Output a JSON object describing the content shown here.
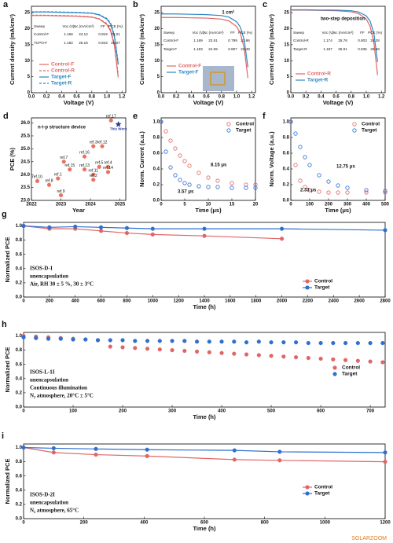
{
  "watermark": "SOLARZOOM",
  "chart_data": [
    {
      "type": "line",
      "label": "a",
      "xlabel": "Voltage (V)",
      "ylabel": "Current density (mA/cm²)",
      "xlim": [
        0,
        1.25
      ],
      "xticks": [
        {
          "value": 0,
          "label": "0.0"
        },
        0.2,
        0.4,
        0.6,
        0.8,
        {
          "value": 1,
          "label": "1.0"
        },
        1.2
      ],
      "ylim": [
        0,
        27
      ],
      "yticks": [
        0,
        5,
        10,
        15,
        20,
        25
      ],
      "x": [
        0,
        0.2,
        0.4,
        0.6,
        0.8,
        0.9,
        1.0,
        1.05,
        1.1,
        1.15
      ],
      "series": [
        {
          "name": "Control-F",
          "color": "#e06666",
          "style": "solid",
          "marker": "none",
          "values": [
            24.1,
            24.1,
            24.0,
            23.9,
            23.6,
            23.0,
            21.3,
            19.2,
            14.6,
            4.8
          ]
        },
        {
          "name": "Control-R",
          "color": "#e06666",
          "style": "dashed",
          "marker": "none",
          "values": [
            24.2,
            24.2,
            24.1,
            24.0,
            23.7,
            23.1,
            21.6,
            19.6,
            15.2,
            5.6
          ]
        },
        {
          "name": "Target-F",
          "color": "#2e86c1",
          "style": "solid",
          "marker": "none",
          "values": [
            25.2,
            25.2,
            25.1,
            25.0,
            24.8,
            24.3,
            23.0,
            21.4,
            17.5,
            8.8
          ]
        },
        {
          "name": "Target-R",
          "color": "#2e86c1",
          "style": "dashed",
          "marker": "none",
          "values": [
            25.3,
            25.3,
            25.2,
            25.1,
            24.9,
            24.4,
            23.2,
            21.7,
            17.9,
            9.4
          ]
        }
      ],
      "table": {
        "header": [
          "Sweep",
          "Voc (V)",
          "Jsc (mA/cm²)",
          "FF",
          "PCE (%)"
        ],
        "rows": [
          [
            "Control-F",
            1.166,
            24.12,
            0.819,
            23.01
          ],
          [
            "TCPO-F",
            1.182,
            25.16,
            0.843,
            25.07
          ]
        ]
      },
      "annotations": []
    },
    {
      "type": "line",
      "label": "b",
      "xlabel": "Voltage (V)",
      "ylabel": "Current density (mA/cm²)",
      "xlim": [
        0,
        1.25
      ],
      "xticks": [
        {
          "value": 0,
          "label": "0.0"
        },
        0.2,
        0.4,
        0.6,
        0.8,
        {
          "value": 1,
          "label": "1.0"
        },
        1.2
      ],
      "ylim": [
        0,
        27
      ],
      "yticks": [
        0,
        5,
        10,
        15,
        20,
        25
      ],
      "x": [
        0,
        0.2,
        0.4,
        0.6,
        0.8,
        0.9,
        1.0,
        1.05,
        1.1,
        1.15
      ],
      "series": [
        {
          "name": "Control-F",
          "color": "#e06666",
          "style": "solid",
          "marker": "none",
          "values": [
            23.5,
            23.5,
            23.4,
            23.3,
            23.0,
            22.4,
            20.7,
            18.6,
            14.0,
            4.6
          ]
        },
        {
          "name": "Target-F",
          "color": "#2e86c1",
          "style": "solid",
          "marker": "none",
          "values": [
            24.6,
            24.6,
            24.5,
            24.4,
            24.1,
            23.6,
            22.2,
            20.5,
            16.6,
            8.0
          ]
        }
      ],
      "table": {
        "header": [
          "Sweep",
          "Voc (V)",
          "Jsc (mA/cm²)",
          "FF",
          "PCE (%)"
        ],
        "rows": [
          [
            "Control-F",
            1.169,
            23.51,
            0.799,
            21.96
          ],
          [
            "Target-F",
            1.183,
            24.59,
            0.807,
            23.48
          ]
        ]
      },
      "annotations": [
        "1 cm²"
      ]
    },
    {
      "type": "line",
      "label": "c",
      "xlabel": "Voltage (V)",
      "ylabel": "Current density (mA/cm²)",
      "xlim": [
        0,
        1.25
      ],
      "xticks": [
        {
          "value": 0,
          "label": "0.0"
        },
        0.2,
        0.4,
        0.6,
        0.8,
        {
          "value": 1,
          "label": "1.0"
        },
        1.2
      ],
      "ylim": [
        0,
        27
      ],
      "yticks": [
        0,
        5,
        10,
        15,
        20,
        25
      ],
      "x": [
        0,
        0.2,
        0.4,
        0.6,
        0.8,
        0.9,
        1.0,
        1.05,
        1.1,
        1.15
      ],
      "series": [
        {
          "name": "Control-R",
          "color": "#e06666",
          "style": "solid",
          "marker": "none",
          "values": [
            25.8,
            25.8,
            25.7,
            25.6,
            25.3,
            24.7,
            23.0,
            20.8,
            15.8,
            5.5
          ]
        },
        {
          "name": "Target-R",
          "color": "#2e86c1",
          "style": "solid",
          "marker": "none",
          "values": [
            25.9,
            25.9,
            25.8,
            25.8,
            25.6,
            25.2,
            24.0,
            22.4,
            18.6,
            9.6
          ]
        }
      ],
      "table": {
        "header": [
          "Sweep",
          "Voc (V)",
          "Jsc (mA/cm²)",
          "FF",
          "PCE (%)"
        ],
        "rows": [
          [
            "Control-R",
            1.174,
            25.76,
            0.803,
            24.28
          ],
          [
            "Target-R",
            1.187,
            25.91,
            0.835,
            25.68
          ]
        ]
      },
      "annotations": [
        "two-step deposition"
      ]
    },
    {
      "type": "scatter",
      "label": "d",
      "xlabel": "Year",
      "ylabel": "PCE (%)",
      "xlim": [
        2022,
        2025.2
      ],
      "xticks": [
        2022,
        2023,
        2024,
        2025
      ],
      "ylim": [
        23,
        26.2
      ],
      "yticks": [
        {
          "value": 23,
          "label": "23.0"
        },
        23.5,
        {
          "value": 24,
          "label": "24.0"
        },
        24.5,
        {
          "value": 25,
          "label": "25.0"
        },
        25.5,
        {
          "value": 26,
          "label": "26.0"
        }
      ],
      "series": [
        {
          "name": null,
          "color": "#e8735f",
          "style": "none",
          "marker": "filled",
          "x": [
            2022.2,
            2022.6,
            2022.9,
            2023.0,
            2023.3,
            2023.1,
            2023.8,
            2023.8,
            2024.1,
            2024.4,
            2024.1,
            2024.1,
            2024.3,
            2024.6,
            2024.6,
            2024.7
          ],
          "values": [
            23.75,
            23.6,
            23.85,
            23.2,
            24.2,
            24.5,
            24.7,
            24.2,
            25.1,
            25.1,
            24.0,
            23.8,
            24.3,
            24.3,
            24.1,
            26.1
          ],
          "point_labels": [
            "ref.10",
            "ref.8",
            "ref.1",
            "ref.9",
            "ref.15",
            "ref.7",
            "ref.16",
            "ref.13",
            "ref.3",
            "ref.12",
            "ref.11",
            "ref.2",
            "ref.5",
            "ref.4",
            "ref.14",
            "ref.17"
          ]
        },
        {
          "name": "This Work",
          "color": "#2a3a9a",
          "style": "none",
          "marker": "star",
          "x": [
            2024.95
          ],
          "values": [
            25.95
          ]
        }
      ],
      "annotations": [
        "n-i-p structure device"
      ]
    },
    {
      "type": "line",
      "label": "e",
      "xlabel": "Time (μs)",
      "ylabel": "Norm. Current (a.u.)",
      "xlim": [
        0,
        20
      ],
      "xticks": [
        0,
        5,
        10,
        15,
        20
      ],
      "ylim": [
        0,
        1.05
      ],
      "yticks": [
        {
          "value": 0,
          "label": "0.0"
        },
        0.2,
        0.4,
        0.6,
        0.8,
        {
          "value": 1,
          "label": "1.0"
        }
      ],
      "x": [
        0,
        1,
        2,
        3,
        4,
        5,
        6,
        8,
        10,
        12,
        15,
        18,
        20
      ],
      "series": [
        {
          "name": "Control",
          "color": "#e06666",
          "style": "none",
          "marker": "open",
          "values": [
            1.0,
            0.88,
            0.76,
            0.66,
            0.57,
            0.5,
            0.44,
            0.35,
            0.29,
            0.25,
            0.22,
            0.2,
            0.2
          ]
        },
        {
          "name": "Target",
          "color": "#2e6fd0",
          "style": "none",
          "marker": "open",
          "values": [
            1.0,
            0.62,
            0.42,
            0.32,
            0.26,
            0.22,
            0.2,
            0.18,
            0.17,
            0.17,
            0.16,
            0.16,
            0.16
          ]
        }
      ],
      "annotations": [
        "8.15 μs",
        "3.57 μs"
      ]
    },
    {
      "type": "line",
      "label": "f",
      "xlabel": "Time (μs)",
      "ylabel": "Norm. Voltage (a.u.)",
      "xlim": [
        0,
        500
      ],
      "xticks": [
        0,
        100,
        200,
        300,
        400,
        500
      ],
      "ylim": [
        0,
        1.05
      ],
      "yticks": [
        {
          "value": 0,
          "label": "0.0"
        },
        0.2,
        0.4,
        0.6,
        0.8,
        {
          "value": 1,
          "label": "1.0"
        }
      ],
      "x": [
        0,
        25,
        50,
        75,
        100,
        150,
        200,
        250,
        300,
        400,
        500
      ],
      "series": [
        {
          "name": "Control",
          "color": "#e06666",
          "style": "none",
          "marker": "open",
          "values": [
            1.0,
            0.45,
            0.25,
            0.17,
            0.13,
            0.11,
            0.1,
            0.1,
            0.1,
            0.1,
            0.1
          ]
        },
        {
          "name": "Target",
          "color": "#2e6fd0",
          "style": "none",
          "marker": "open",
          "values": [
            1.0,
            0.85,
            0.68,
            0.55,
            0.45,
            0.32,
            0.24,
            0.19,
            0.16,
            0.13,
            0.12
          ]
        }
      ],
      "annotations": [
        "12.75 μs",
        "2.33 μs"
      ]
    },
    {
      "type": "line",
      "label": "g",
      "xlabel": "Time (h)",
      "ylabel": "Normalized PCE",
      "xlim": [
        0,
        2800
      ],
      "xticks": [
        0,
        200,
        400,
        600,
        800,
        1000,
        1200,
        1400,
        1600,
        1800,
        2000,
        2200,
        2400,
        2600,
        2800
      ],
      "ylim": [
        0,
        1.05
      ],
      "yticks": [
        {
          "value": 0,
          "label": "0.0"
        },
        0.2,
        0.4,
        0.6,
        0.8,
        {
          "value": 1,
          "label": "1.0"
        }
      ],
      "series": [
        {
          "name": "Control",
          "color": "#e06666",
          "style": "solid",
          "marker": "filled",
          "x": [
            0,
            200,
            400,
            600,
            800,
            1000,
            1400,
            2000
          ],
          "values": [
            1.0,
            0.96,
            0.96,
            0.93,
            0.9,
            0.88,
            0.86,
            0.82
          ]
        },
        {
          "name": "Target",
          "color": "#2e6fd0",
          "style": "solid",
          "marker": "filled",
          "x": [
            0,
            200,
            400,
            600,
            800,
            1000,
            1400,
            2000,
            2800
          ],
          "values": [
            1.0,
            0.98,
            0.99,
            0.98,
            0.97,
            0.96,
            0.96,
            0.96,
            0.94
          ]
        }
      ],
      "annotations": [
        "ISOS-D-1",
        "unencapsulation",
        "Air, RH 30 ± 5 %, 30 ± 3°C"
      ]
    },
    {
      "type": "line",
      "label": "h",
      "xlabel": "Time (h)",
      "ylabel": "Normalized PCE",
      "xlim": [
        0,
        730
      ],
      "xticks": [
        0,
        100,
        200,
        300,
        400,
        500,
        600,
        700
      ],
      "ylim": [
        0,
        1.05
      ],
      "yticks": [
        {
          "value": 0,
          "label": "0.0"
        },
        0.2,
        0.4,
        0.6,
        0.8,
        {
          "value": 1,
          "label": "1.0"
        }
      ],
      "x": [
        0,
        25,
        50,
        75,
        100,
        125,
        150,
        175,
        200,
        225,
        250,
        275,
        300,
        325,
        350,
        375,
        400,
        425,
        450,
        475,
        500,
        525,
        550,
        575,
        600,
        625,
        650,
        675,
        700,
        725
      ],
      "series": [
        {
          "name": "Control",
          "color": "#e06666",
          "style": "none",
          "marker": "filled",
          "values": [
            1.0,
            0.99,
            0.98,
            0.97,
            0.96,
            0.95,
            0.94,
            0.85,
            0.84,
            0.83,
            0.82,
            0.81,
            0.8,
            0.79,
            0.78,
            0.77,
            0.76,
            0.75,
            0.74,
            0.73,
            0.72,
            0.71,
            0.7,
            0.69,
            0.68,
            0.67,
            0.66,
            0.65,
            0.64,
            0.63
          ]
        },
        {
          "name": "Target",
          "color": "#2e6fd0",
          "style": "none",
          "marker": "filled",
          "values": [
            0.98,
            0.97,
            0.96,
            0.96,
            0.95,
            0.95,
            0.94,
            0.94,
            0.94,
            0.93,
            0.93,
            0.93,
            0.93,
            0.93,
            0.92,
            0.92,
            0.92,
            0.92,
            0.91,
            0.92,
            0.91,
            0.91,
            0.91,
            0.9,
            0.9,
            0.9,
            0.9,
            0.9,
            0.9,
            0.9
          ]
        }
      ],
      "annotations": [
        "ISOS-L-1I",
        "unencapsulation",
        "Continuous illumination",
        "N₂ atmosphere, 20°C ± 5°C"
      ]
    },
    {
      "type": "line",
      "label": "i",
      "xlabel": "Time (h)",
      "ylabel": "Normalized PCE",
      "xlim": [
        0,
        1200
      ],
      "xticks": [
        0,
        200,
        400,
        600,
        800,
        1000,
        1200
      ],
      "ylim": [
        0,
        1.05
      ],
      "yticks": [
        {
          "value": 0,
          "label": "0.0"
        },
        0.2,
        0.4,
        0.6,
        0.8,
        {
          "value": 1,
          "label": "1.0"
        }
      ],
      "x": [
        0,
        100,
        240,
        410,
        700,
        850,
        1200
      ],
      "series": [
        {
          "name": "Control",
          "color": "#e06666",
          "style": "solid",
          "marker": "filled",
          "values": [
            1.0,
            0.93,
            0.9,
            0.88,
            0.83,
            0.82,
            0.8
          ]
        },
        {
          "name": "Target",
          "color": "#2e6fd0",
          "style": "solid",
          "marker": "filled",
          "values": [
            1.0,
            0.99,
            0.98,
            0.97,
            0.96,
            0.94,
            0.93
          ]
        }
      ],
      "annotations": [
        "ISOS-D-2I",
        "unencapsulation",
        "N₂ atmosphere, 65°C"
      ]
    }
  ]
}
